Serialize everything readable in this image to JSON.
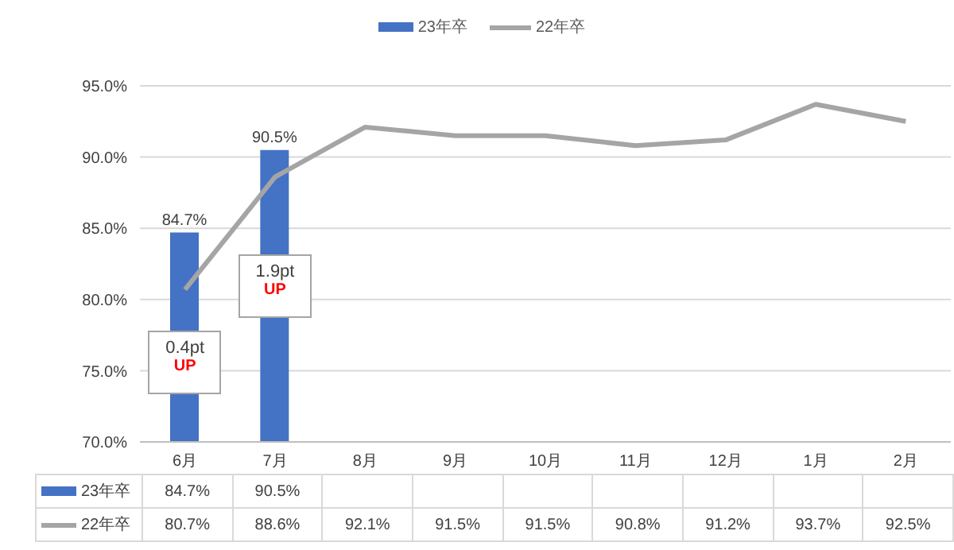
{
  "chart_data": {
    "type": "bar",
    "categories": [
      "6月",
      "7月",
      "8月",
      "9月",
      "10月",
      "11月",
      "12月",
      "1月",
      "2月"
    ],
    "series": [
      {
        "name": "23年卒",
        "color": "#4472c4",
        "values": [
          84.7,
          90.5,
          null,
          null,
          null,
          null,
          null,
          null,
          null
        ],
        "value_labels": [
          "84.7%",
          "90.5%",
          null,
          null,
          null,
          null,
          null,
          null,
          null
        ]
      },
      {
        "name": "22年卒",
        "type": "line",
        "color": "#a5a5a5",
        "values": [
          80.7,
          88.6,
          92.1,
          91.5,
          91.5,
          90.8,
          91.2,
          93.7,
          92.5
        ],
        "value_labels": [
          "80.7%",
          "88.6%",
          "92.1%",
          "91.5%",
          "91.5%",
          "90.8%",
          "91.2%",
          "93.7%",
          "92.5%"
        ]
      }
    ],
    "ylim": [
      70,
      95
    ],
    "yticks": [
      {
        "value": 70,
        "label": "70.0%"
      },
      {
        "value": 75,
        "label": "75.0%"
      },
      {
        "value": 80,
        "label": "80.0%"
      },
      {
        "value": 85,
        "label": "85.0%"
      },
      {
        "value": 90,
        "label": "90.0%"
      },
      {
        "value": 95,
        "label": "95.0%"
      }
    ],
    "grid": "y",
    "legend": "top",
    "annotations": [
      "0.4pt UP",
      "1.9pt UP"
    ]
  }
}
